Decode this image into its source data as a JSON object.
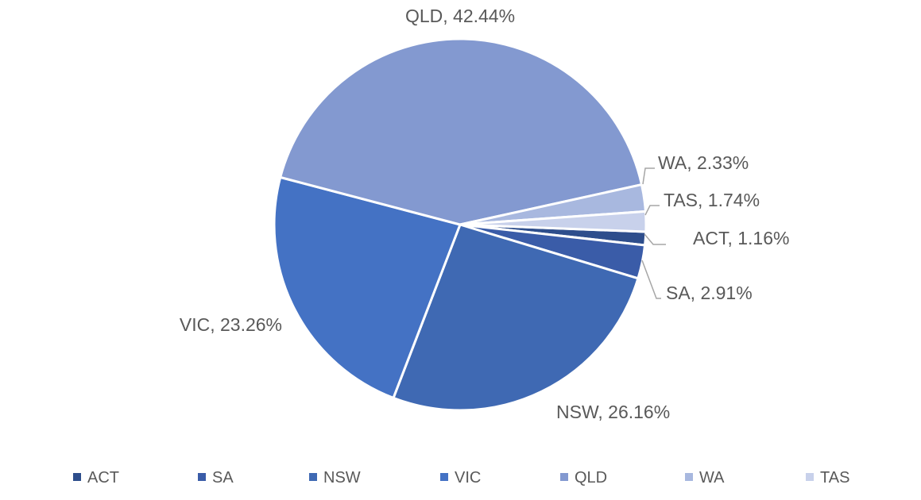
{
  "chart_data": {
    "type": "pie",
    "title": "",
    "categories": [
      "ACT",
      "SA",
      "NSW",
      "VIC",
      "QLD",
      "WA",
      "TAS"
    ],
    "values": [
      1.16,
      2.91,
      26.16,
      23.26,
      42.44,
      2.33,
      1.74
    ],
    "unit": "%",
    "data_labels": [
      "ACT, 1.16%",
      "SA, 2.91%",
      "NSW, 26.16%",
      "VIC, 23.26%",
      "QLD, 42.44%",
      "WA, 2.33%",
      "TAS, 1.74%"
    ],
    "colors": [
      "#2e4e8c",
      "#3a5ca8",
      "#3f69b3",
      "#4472c4",
      "#8399d0",
      "#a8b8df",
      "#c8d1eb"
    ],
    "legend": {
      "entries": [
        "ACT",
        "SA",
        "NSW",
        "VIC",
        "QLD",
        "WA",
        "TAS"
      ],
      "placement": "bottom"
    }
  },
  "colors": {
    "background": "#ffffff",
    "text": "#595959",
    "leader_line": "#a6a6a6",
    "slice_border": "#ffffff"
  }
}
